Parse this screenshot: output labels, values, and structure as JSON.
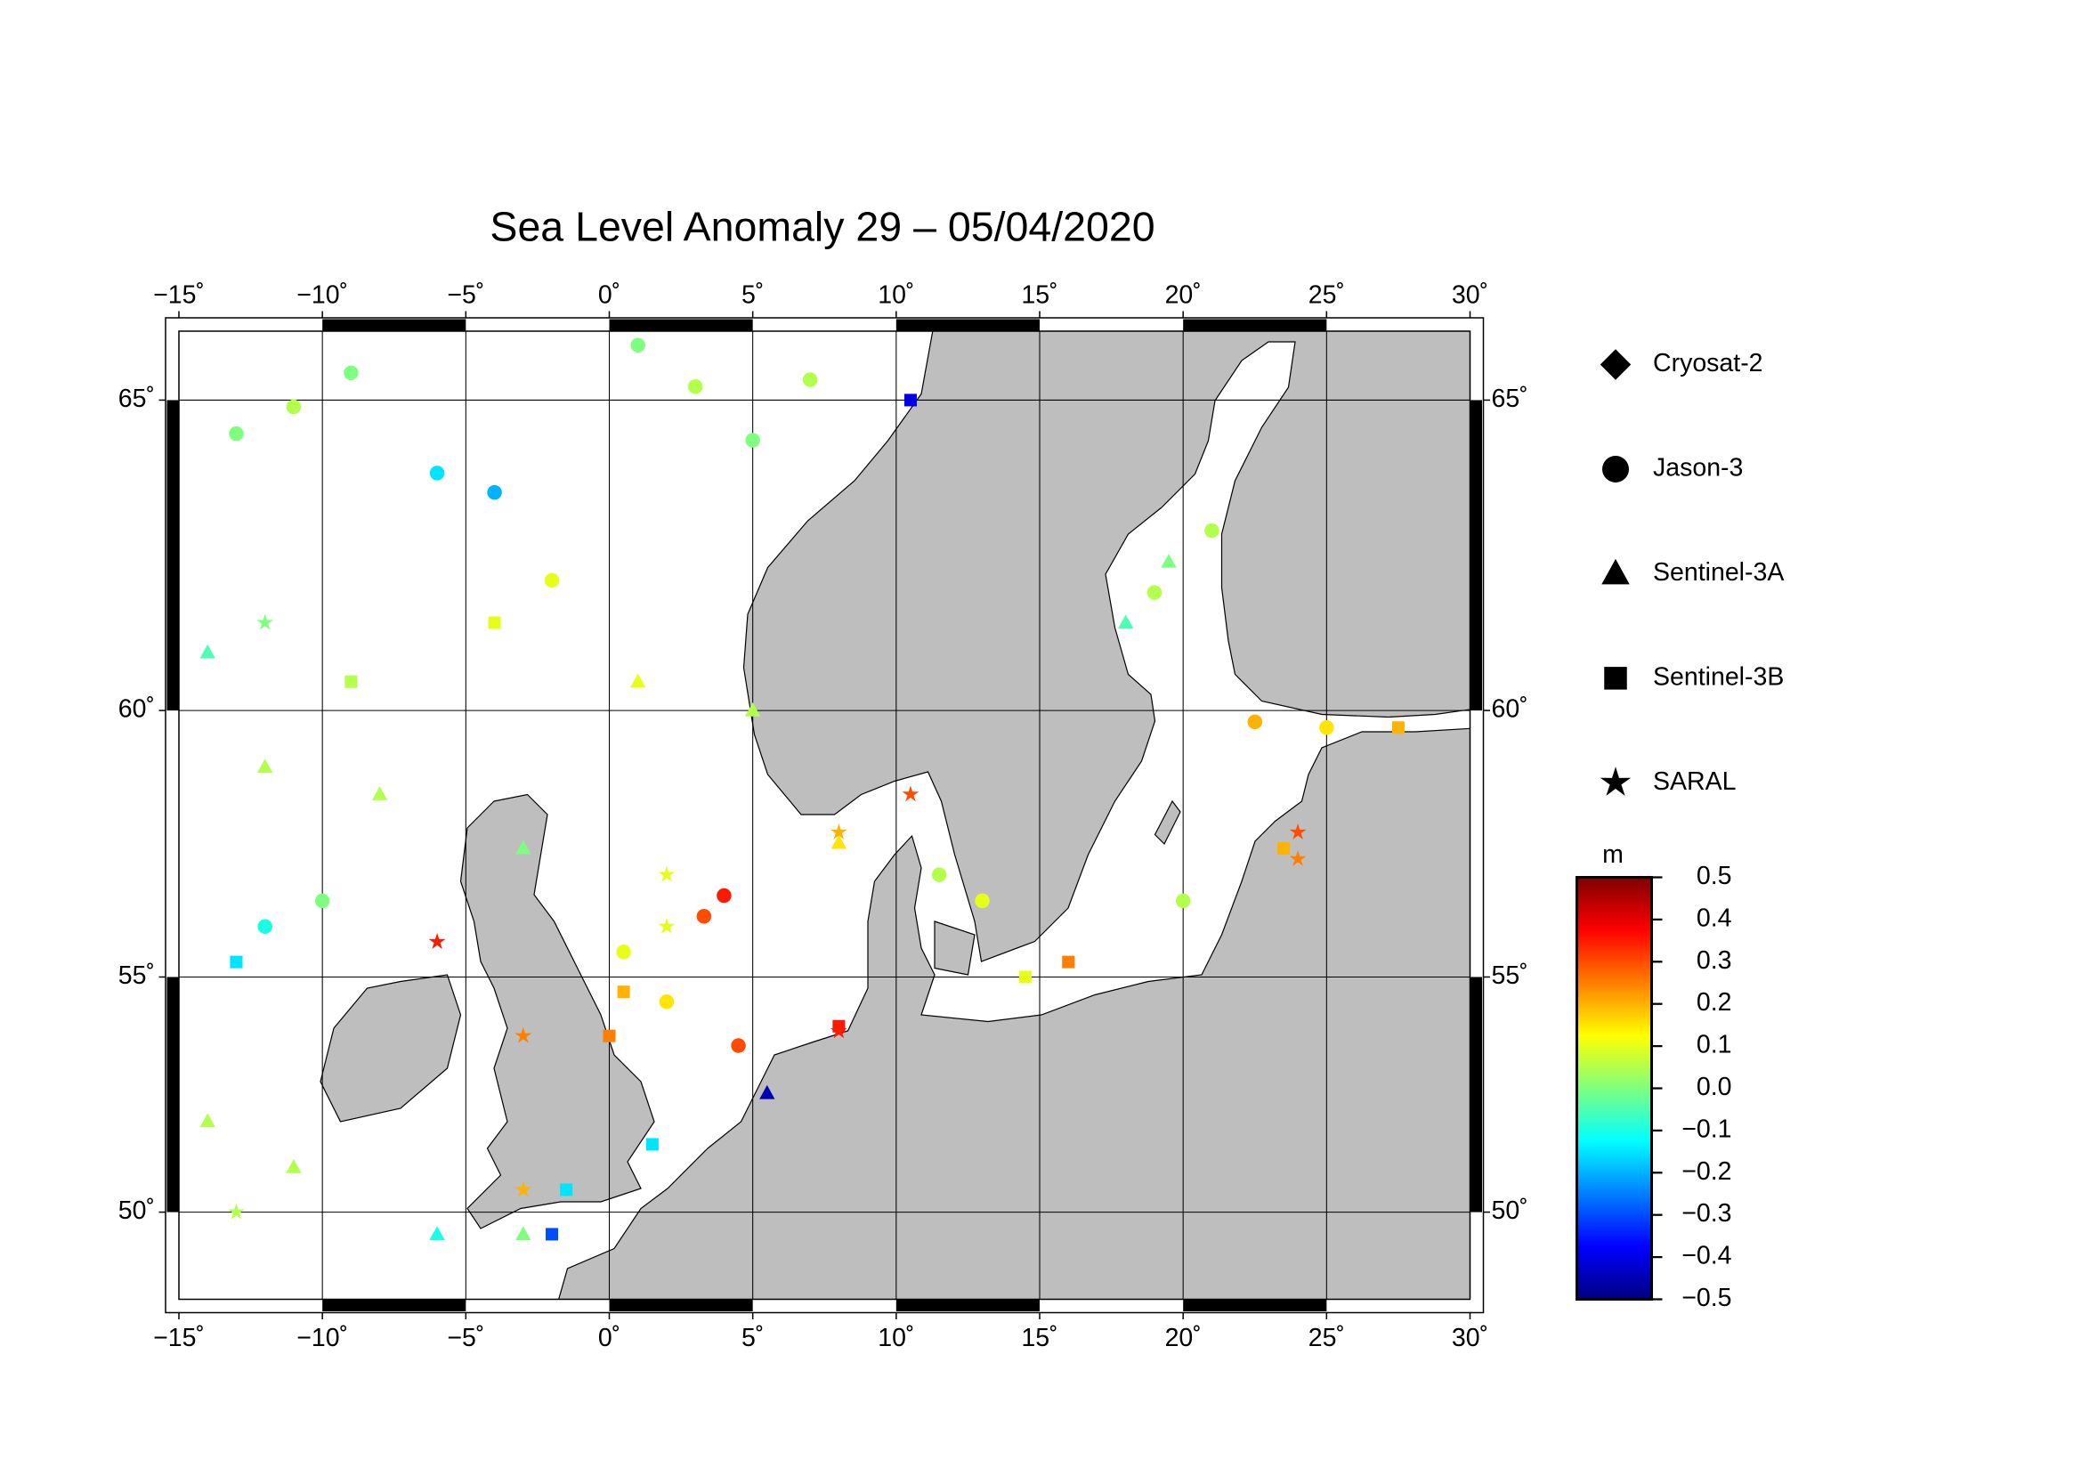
{
  "chart_data": {
    "type": "map",
    "title": "Sea Level Anomaly 29 – 05/04/2020",
    "xlim": [
      -15,
      30
    ],
    "ylim": [
      48.0,
      66.0
    ],
    "xticks": [
      {
        "value": -15,
        "label": "−15˚"
      },
      {
        "value": -10,
        "label": "−10˚"
      },
      {
        "value": -5,
        "label": "−5˚"
      },
      {
        "value": 0,
        "label": "0˚"
      },
      {
        "value": 5,
        "label": "5˚"
      },
      {
        "value": 10,
        "label": "10˚"
      },
      {
        "value": 15,
        "label": "15˚"
      },
      {
        "value": 20,
        "label": "20˚"
      },
      {
        "value": 25,
        "label": "25˚"
      },
      {
        "value": 30,
        "label": "30˚"
      }
    ],
    "yticks": [
      {
        "value": 50,
        "label": "50˚"
      },
      {
        "value": 55,
        "label": "55˚"
      },
      {
        "value": 60,
        "label": "60˚"
      },
      {
        "value": 65,
        "label": "65˚"
      }
    ],
    "grid": true,
    "colorbar": {
      "label": "m",
      "lim": [
        -0.5,
        0.5
      ],
      "colormap": [
        "#00007f",
        "#0000ff",
        "#007fff",
        "#00ffff",
        "#7fff7f",
        "#ffff00",
        "#ff7f00",
        "#ff0000",
        "#7f0000"
      ],
      "ticks": [
        0.5,
        0.4,
        0.3,
        0.2,
        0.1,
        {
          "value": 0,
          "label": "0.0"
        },
        {
          "value": -0.1,
          "label": "−0.1"
        },
        {
          "value": -0.2,
          "label": "−0.2"
        },
        {
          "value": -0.3,
          "label": "−0.3"
        },
        {
          "value": -0.4,
          "label": "−0.4"
        },
        {
          "value": -0.5,
          "label": "−0.5"
        }
      ]
    },
    "series": [
      {
        "name": "Cryosat-2",
        "marker": "diamond",
        "x": [],
        "y": [],
        "values": []
      },
      {
        "name": "Jason-3",
        "marker": "circle",
        "x": [
          -13,
          -11,
          -9,
          -6,
          -4,
          -2,
          1,
          3,
          5,
          7,
          -12,
          -10,
          3.3,
          4,
          4.5,
          2,
          0.5,
          19,
          21,
          22.5,
          25,
          20,
          13,
          11.5
        ],
        "y": [
          64.5,
          64.9,
          65.4,
          63.9,
          63.6,
          62.2,
          65.8,
          65.2,
          64.4,
          65.3,
          56,
          56.5,
          56.2,
          56.6,
          53.6,
          54.5,
          55.5,
          62,
          63,
          59.8,
          59.7,
          56.5,
          56.5,
          57
        ],
        "values": [
          0.0,
          0.05,
          0.0,
          -0.15,
          -0.2,
          0.1,
          0.0,
          0.05,
          0.0,
          0.05,
          -0.1,
          0.0,
          0.3,
          0.35,
          0.3,
          0.15,
          0.1,
          0.05,
          0.05,
          0.2,
          0.15,
          0.05,
          0.1,
          0.05
        ]
      },
      {
        "name": "Sentinel-3A",
        "marker": "triangle",
        "x": [
          -14,
          -12,
          -8,
          -3,
          1,
          5,
          8,
          5.5,
          18,
          19.5,
          -14,
          -11,
          -6,
          -3
        ],
        "y": [
          61,
          59,
          58.5,
          57.5,
          60.5,
          60,
          57.6,
          52.6,
          61.5,
          62.5,
          52,
          51,
          49.5,
          49.5
        ],
        "values": [
          -0.05,
          0.05,
          0.05,
          0.0,
          0.1,
          0.05,
          0.15,
          -0.45,
          -0.05,
          0.0,
          0.05,
          0.05,
          -0.1,
          0.0
        ]
      },
      {
        "name": "Sentinel-3B",
        "marker": "square",
        "x": [
          -13,
          -9,
          -4,
          0.5,
          0,
          1.5,
          8,
          10.5,
          16,
          23.5,
          27.5,
          14.5,
          -1.5,
          -2
        ],
        "y": [
          55.3,
          60.5,
          61.5,
          54.7,
          53.8,
          51.5,
          54,
          65,
          55.3,
          57.5,
          59.7,
          55,
          50.5,
          49.5
        ],
        "values": [
          -0.15,
          0.05,
          0.1,
          0.2,
          0.25,
          -0.15,
          0.35,
          -0.4,
          0.25,
          0.2,
          0.2,
          0.1,
          -0.15,
          -0.3
        ]
      },
      {
        "name": "SARAL",
        "marker": "star",
        "x": [
          -12,
          -6,
          -3,
          10.5,
          8,
          -3,
          24,
          24,
          8,
          2,
          -13,
          2
        ],
        "y": [
          61.5,
          55.7,
          53.8,
          58.5,
          53.9,
          50.5,
          57.8,
          57.3,
          57.8,
          56,
          50,
          57
        ],
        "values": [
          0.0,
          0.35,
          0.25,
          0.3,
          0.35,
          0.2,
          0.3,
          0.25,
          0.2,
          0.1,
          0.05,
          0.1
        ]
      }
    ]
  }
}
